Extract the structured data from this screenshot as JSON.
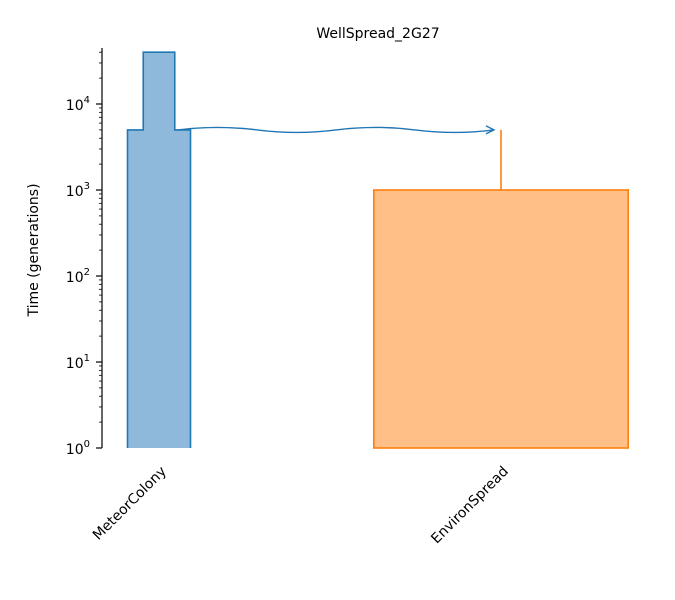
{
  "chart_data": {
    "type": "demography",
    "title": "WellSpread_2G27",
    "ylabel": "Time (generations)",
    "yscale": "log",
    "ylim": [
      1,
      40000
    ],
    "yticks": [
      {
        "value": 1,
        "base": "10",
        "exp": "0"
      },
      {
        "value": 10,
        "base": "10",
        "exp": "1"
      },
      {
        "value": 100,
        "base": "10",
        "exp": "2"
      },
      {
        "value": 1000,
        "base": "10",
        "exp": "3"
      },
      {
        "value": 10000,
        "base": "10",
        "exp": "4"
      }
    ],
    "demes": [
      {
        "name": "MeteorColony",
        "color": "#1f77b4",
        "fill": "#8fb9da",
        "epochs": [
          {
            "start_time": 5000,
            "end_time": 0,
            "relative_size": 1.0
          },
          {
            "start_time": 40000,
            "end_time": 5000,
            "relative_size": 0.5
          }
        ]
      },
      {
        "name": "EnvironSpread",
        "color": "#ff7f0e",
        "fill": "#ffbf86",
        "start_time": 5000,
        "epochs": [
          {
            "start_time": 1000,
            "end_time": 0,
            "relative_size": 4.0
          }
        ]
      }
    ],
    "migrations": [
      {
        "source": "MeteorColony",
        "dest": "EnvironSpread",
        "time": 5000
      }
    ]
  }
}
